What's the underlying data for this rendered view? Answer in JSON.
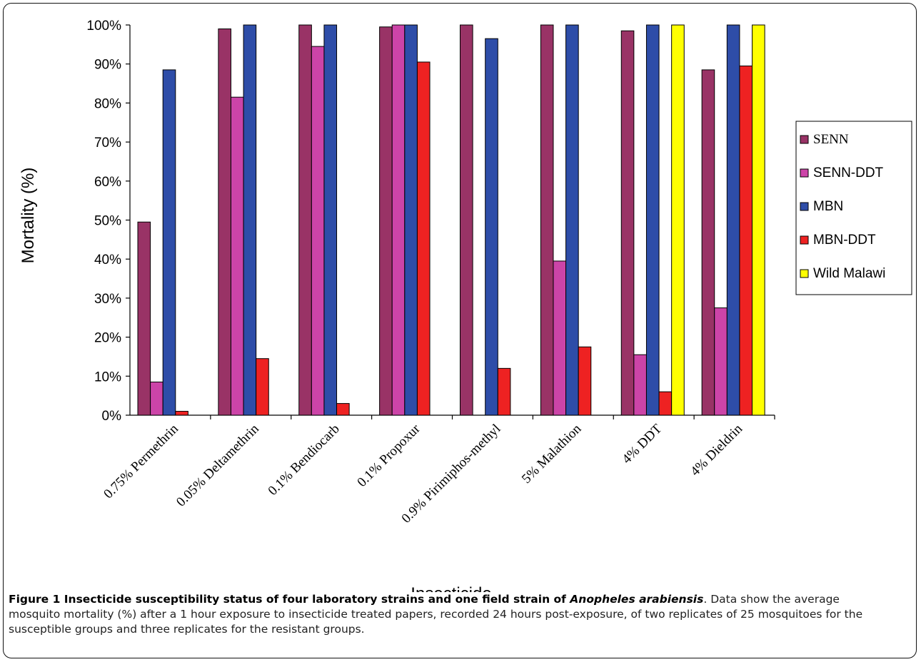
{
  "chart_data": {
    "type": "bar",
    "xlabel": "Insecticide",
    "ylabel": "Mortality (%)",
    "ylim": [
      0,
      100
    ],
    "yticks": [
      "0%",
      "10%",
      "20%",
      "30%",
      "40%",
      "50%",
      "60%",
      "70%",
      "80%",
      "90%",
      "100%"
    ],
    "categories": [
      "0.75% Permethrin",
      "0.05% Deltamethrin",
      "0.1% Bendiocarb",
      "0.1% Propoxur",
      "0.9% Pirimiphos-methyl",
      "5% Malathion",
      "4% DDT",
      "4% Dieldrin"
    ],
    "legend_position": "right",
    "grid": false,
    "series": [
      {
        "name": "SENN",
        "color": "#993366",
        "values": [
          49.5,
          99,
          100,
          99.5,
          100,
          100,
          98.5,
          88.5
        ]
      },
      {
        "name": "SENN-DDT",
        "color": "#CC44A8",
        "values": [
          8.5,
          81.5,
          94.5,
          100,
          null,
          39.5,
          15.5,
          27.5
        ]
      },
      {
        "name": "MBN",
        "color": "#2E4DA8",
        "values": [
          88.5,
          100,
          100,
          100,
          96.5,
          100,
          100,
          100
        ]
      },
      {
        "name": "MBN-DDT",
        "color": "#EE2222",
        "values": [
          1,
          14.5,
          3,
          90.5,
          12,
          17.5,
          6,
          89.5
        ]
      },
      {
        "name": "Wild Malawi",
        "color": "#FFFF00",
        "values": [
          null,
          null,
          null,
          null,
          null,
          null,
          100,
          100
        ]
      }
    ]
  },
  "caption": {
    "label": "Figure 1",
    "title_start": "Insecticide susceptibility status of four laboratory strains and one field strain of ",
    "title_species": "Anopheles arabiensis",
    "body": ". Data show the average mosquito mortality (%) after a 1 hour exposure to insecticide treated papers, recorded 24 hours post-exposure, of two replicates of 25 mosquitoes for the susceptible groups and three replicates for the resistant groups."
  }
}
